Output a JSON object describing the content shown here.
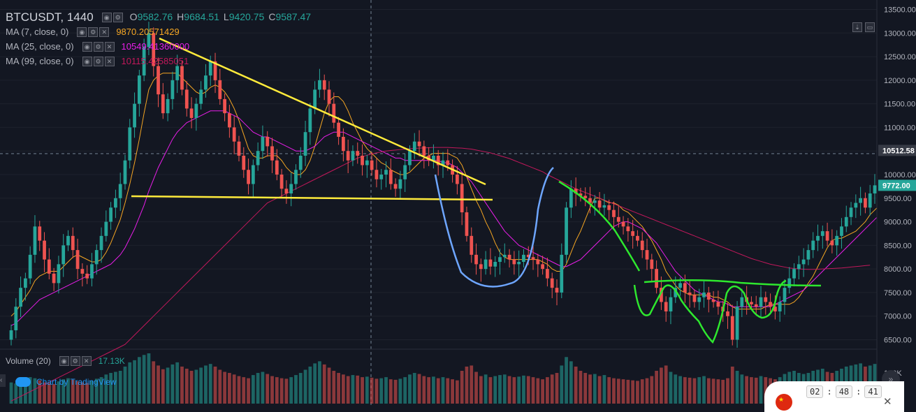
{
  "header": {
    "symbol": "BTCUSDT, 1440",
    "open_label": "O",
    "open": "9582.76",
    "high_label": "H",
    "high": "9684.51",
    "low_label": "L",
    "low": "9420.75",
    "close_label": "C",
    "close": "9587.47"
  },
  "indicators": [
    {
      "label": "MA (7, close, 0)",
      "value": "9870.20571429",
      "color": "#f5a623"
    },
    {
      "label": "MA (25, close, 0)",
      "value": "10549.41360000",
      "color": "#e91ee9"
    },
    {
      "label": "MA (99, close, 0)",
      "value": "10115.42585051",
      "color": "#c2185b"
    }
  ],
  "volume_legend": {
    "label": "Volume (20)",
    "value": "17.13K"
  },
  "branding": "Chart by TradingView",
  "clock": {
    "h": "02",
    "m": "48",
    "s": "41"
  },
  "colors": {
    "up": "#26a69a",
    "down": "#ef5350",
    "background": "#131722",
    "grid": "#1e222d"
  },
  "chart_data": {
    "type": "candlestick",
    "symbol": "BTCUSDT",
    "interval": "1440",
    "ylim": [
      6300,
      13700
    ],
    "y_ticks": [
      "13500.00",
      "13000.00",
      "12500.00",
      "12000.00",
      "11500.00",
      "11000.00",
      "10500.00",
      "10000.00",
      "9500.00",
      "9000.00",
      "8500.00",
      "8000.00",
      "7500.00",
      "7000.00",
      "6500.00"
    ],
    "price_labels": [
      {
        "text": "10512.58",
        "value": 10512.58,
        "color": "#363a45"
      },
      {
        "text": "9772.00",
        "value": 9772,
        "color": "#26a69a"
      }
    ],
    "volume_tick": "100K",
    "closes": [
      6700,
      7200,
      7600,
      7800,
      8300,
      8900,
      8600,
      8200,
      7900,
      7700,
      8100,
      8500,
      8700,
      8400,
      8000,
      7900,
      7800,
      8100,
      8400,
      8700,
      9000,
      9300,
      9500,
      9800,
      10300,
      11000,
      11500,
      12100,
      12700,
      13000,
      12300,
      11700,
      11300,
      11600,
      12000,
      12300,
      11800,
      11400,
      11200,
      11500,
      11800,
      12100,
      12400,
      12000,
      11600,
      11300,
      11000,
      10700,
      10400,
      10100,
      9800,
      10200,
      10500,
      10800,
      10600,
      10300,
      10000,
      9700,
      9600,
      9800,
      10100,
      10400,
      10900,
      11400,
      11800,
      12000,
      11800,
      11500,
      11100,
      10800,
      10500,
      10300,
      10500,
      10400,
      10200,
      10300,
      10100,
      9900,
      10000,
      10100,
      9800,
      9700,
      9900,
      10200,
      10500,
      10700,
      10600,
      10400,
      10300,
      10400,
      10200,
      10300,
      10200,
      10000,
      9800,
      9200,
      8700,
      8300,
      8100,
      8000,
      8200,
      8050,
      8150,
      8250,
      8300,
      8200,
      8100,
      8150,
      8300,
      8250,
      8200,
      8100,
      8000,
      7800,
      7600,
      7500,
      8300,
      9300,
      9700,
      9600,
      9550,
      9500,
      9400,
      9450,
      9300,
      9350,
      9250,
      9100,
      9000,
      8900,
      8800,
      8700,
      8600,
      8400,
      8200,
      8000,
      7600,
      7300,
      7100,
      7400,
      7600,
      7700,
      7500,
      7450,
      7300,
      7400,
      7500,
      7350,
      7300,
      7200,
      7100,
      7000,
      6500,
      7200,
      7400,
      7300,
      7250,
      7200,
      7400,
      7300,
      7200,
      7100,
      7300,
      7600,
      7800,
      8000,
      8100,
      8200,
      8400,
      8600,
      8700,
      8800,
      8600,
      8500,
      8700,
      8900,
      9100,
      9300,
      9400,
      9500,
      9300,
      9600,
      9772
    ],
    "volumes": [
      40,
      38,
      42,
      45,
      50,
      48,
      44,
      40,
      39,
      37,
      42,
      46,
      48,
      45,
      42,
      40,
      39,
      43,
      47,
      50,
      55,
      58,
      60,
      62,
      70,
      78,
      82,
      88,
      92,
      95,
      80,
      72,
      65,
      68,
      74,
      78,
      70,
      66,
      62,
      64,
      68,
      72,
      75,
      70,
      64,
      60,
      58,
      55,
      52,
      50,
      48,
      54,
      58,
      60,
      56,
      52,
      50,
      48,
      47,
      50,
      54,
      58,
      64,
      70,
      76,
      80,
      74,
      68,
      62,
      58,
      55,
      52,
      54,
      53,
      50,
      51,
      49,
      47,
      48,
      50,
      46,
      45,
      47,
      50,
      55,
      58,
      56,
      52,
      50,
      51,
      48,
      50,
      48,
      46,
      44,
      62,
      70,
      72,
      60,
      52,
      55,
      50,
      52,
      54,
      55,
      52,
      50,
      51,
      53,
      52,
      50,
      48,
      46,
      50,
      55,
      58,
      72,
      88,
      80,
      70,
      62,
      58,
      55,
      56,
      52,
      54,
      50,
      48,
      47,
      46,
      45,
      44,
      43,
      46,
      48,
      52,
      62,
      68,
      72,
      60,
      55,
      52,
      50,
      49,
      48,
      50,
      52,
      48,
      47,
      46,
      45,
      48,
      70,
      62,
      55,
      52,
      50,
      49,
      52,
      50,
      48,
      46,
      50,
      56,
      60,
      62,
      58,
      56,
      58,
      62,
      64,
      66,
      60,
      58,
      62,
      66,
      70,
      72,
      74,
      76,
      70,
      72,
      75
    ],
    "ma7": [
      7000,
      7100,
      7250,
      7400,
      7550,
      7750,
      7850,
      7900,
      7950,
      7950,
      7950,
      8050,
      8150,
      8250,
      8300,
      8250,
      8200,
      8150,
      8150,
      8200,
      8350,
      8550,
      8800,
      9050,
      9400,
      9800,
      10250,
      10750,
      11300,
      11800,
      12000,
      12100,
      12150,
      12150,
      12150,
      12150,
      12050,
      11950,
      11850,
      11750,
      11700,
      11750,
      11850,
      11900,
      11850,
      11750,
      11600,
      11400,
      11150,
      10850,
      10550,
      10400,
      10350,
      10350,
      10400,
      10400,
      10400,
      10300,
      10150,
      10050,
      10000,
      10000,
      10100,
      10300,
      10600,
      10950,
      11300,
      11550,
      11650,
      11650,
      11550,
      11350,
      11100,
      10900,
      10700,
      10550,
      10450,
      10350,
      10250,
      10200,
      10100,
      10050,
      10000,
      10000,
      10050,
      10150,
      10250,
      10350,
      10400,
      10450,
      10450,
      10450,
      10450,
      10400,
      10350,
      10200,
      9950,
      9700,
      9450,
      9250,
      9000,
      8800,
      8550,
      8350,
      8250,
      8200,
      8200,
      8200,
      8200,
      8200,
      8200,
      8200,
      8150,
      8100,
      8000,
      7950,
      7950,
      8100,
      8350,
      8600,
      8800,
      9050,
      9300,
      9500,
      9500,
      9450,
      9400,
      9400,
      9350,
      9250,
      9200,
      9100,
      9000,
      8900,
      8750,
      8600,
      8400,
      8200,
      7950,
      7800,
      7650,
      7550,
      7500,
      7450,
      7450,
      7450,
      7450,
      7450,
      7400,
      7400,
      7350,
      7300,
      7200,
      7150,
      7150,
      7150,
      7150,
      7150,
      7150,
      7200,
      7250,
      7250,
      7250,
      7250,
      7250,
      7300,
      7400,
      7550,
      7700,
      7850,
      8050,
      8250,
      8450,
      8600,
      8650,
      8650,
      8700,
      8750,
      8800,
      8900,
      9000,
      9150,
      9250,
      9350,
      9400,
      9480
    ],
    "ma25": [
      6800,
      6850,
      6950,
      7050,
      7150,
      7250,
      7350,
      7400,
      7450,
      7500,
      7550,
      7600,
      7650,
      7700,
      7750,
      7800,
      7850,
      7900,
      7950,
      8000,
      8050,
      8100,
      8200,
      8300,
      8450,
      8650,
      8850,
      9100,
      9350,
      9650,
      9900,
      10150,
      10350,
      10550,
      10750,
      10900,
      11000,
      11100,
      11150,
      11200,
      11250,
      11300,
      11350,
      11350,
      11350,
      11350,
      11300,
      11250,
      11200,
      11100,
      11000,
      10900,
      10850,
      10800,
      10800,
      10750,
      10700,
      10650,
      10600,
      10550,
      10500,
      10500,
      10500,
      10550,
      10600,
      10700,
      10800,
      10850,
      10900,
      10900,
      10900,
      10850,
      10800,
      10750,
      10700,
      10650,
      10600,
      10550,
      10500,
      10450,
      10400,
      10350,
      10350,
      10300,
      10300,
      10300,
      10300,
      10300,
      10300,
      10300,
      10300,
      10250,
      10250,
      10200,
      10150,
      10050,
      9950,
      9850,
      9700,
      9550,
      9400,
      9250,
      9100,
      8950,
      8800,
      8700,
      8600,
      8500,
      8450,
      8400,
      8350,
      8300,
      8250,
      8200,
      8150,
      8100,
      8050,
      8050,
      8100,
      8150,
      8200,
      8300,
      8400,
      8500,
      8600,
      8700,
      8800,
      8900,
      8950,
      9000,
      9000,
      8950,
      8900,
      8850,
      8750,
      8650,
      8550,
      8400,
      8250,
      8100,
      7950,
      7850,
      7750,
      7650,
      7550,
      7500,
      7450,
      7400,
      7350,
      7300,
      7300,
      7250,
      7200,
      7200,
      7200,
      7200,
      7200,
      7200,
      7200,
      7200,
      7200,
      7250,
      7300,
      7350,
      7400,
      7450,
      7500,
      7550,
      7650,
      7750,
      7850,
      7950,
      8050,
      8150,
      8250,
      8350,
      8450,
      8550,
      8650,
      8750,
      8850,
      8950,
      9050,
      9150
    ],
    "ma99": [
      5200,
      5250,
      5300,
      5350,
      5400,
      5450,
      5500,
      5550,
      5600,
      5650,
      5700,
      5750,
      5800,
      5850,
      5900,
      5950,
      6000,
      6050,
      6100,
      6150,
      6200,
      6250,
      6300,
      6350,
      6400,
      6500,
      6600,
      6700,
      6800,
      6900,
      7000,
      7100,
      7200,
      7300,
      7400,
      7500,
      7600,
      7700,
      7800,
      7900,
      8000,
      8100,
      8200,
      8300,
      8400,
      8500,
      8600,
      8700,
      8800,
      8900,
      9000,
      9100,
      9200,
      9300,
      9400,
      9450,
      9500,
      9550,
      9600,
      9650,
      9700,
      9750,
      9800,
      9850,
      9900,
      9950,
      10000,
      10050,
      10100,
      10150,
      10200,
      10250,
      10300,
      10350,
      10380,
      10410,
      10440,
      10460,
      10480,
      10500,
      10510,
      10520,
      10530,
      10540,
      10550,
      10555,
      10560,
      10565,
      10570,
      10575,
      10575,
      10575,
      10575,
      10570,
      10565,
      10560,
      10550,
      10540,
      10520,
      10500,
      10480,
      10460,
      10430,
      10400,
      10370,
      10340,
      10300,
      10260,
      10220,
      10180,
      10140,
      10100,
      10060,
      10000,
      9950,
      9900,
      9850,
      9800,
      9750,
      9700,
      9660,
      9620,
      9580,
      9540,
      9500,
      9460,
      9420,
      9380,
      9340,
      9300,
      9260,
      9220,
      9180,
      9140,
      9100,
      9060,
      9020,
      8980,
      8940,
      8900,
      8860,
      8820,
      8780,
      8740,
      8700,
      8660,
      8620,
      8580,
      8540,
      8500,
      8460,
      8420,
      8380,
      8340,
      8300,
      8260,
      8220,
      8190,
      8160,
      8130,
      8100,
      8080,
      8060,
      8040,
      8020,
      8010,
      8000,
      7995,
      7990,
      7990,
      7995,
      8000,
      8005,
      8010,
      8015,
      8020,
      8030,
      8040,
      8050,
      8060,
      8070,
      8080
    ]
  }
}
